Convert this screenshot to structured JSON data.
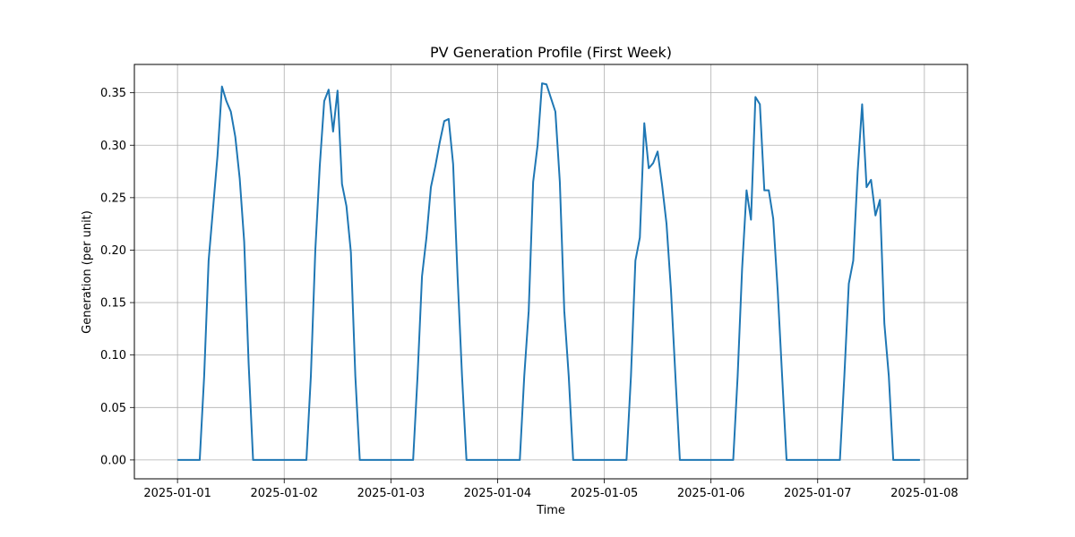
{
  "chart_data": {
    "type": "line",
    "title": "PV Generation Profile (First Week)",
    "xlabel": "Time",
    "ylabel": "Generation (per unit)",
    "x_unit": "hours since 2025-01-01 00:00",
    "xlim": [
      -9.7,
      177.7
    ],
    "ylim": [
      -0.018,
      0.377
    ],
    "grid": true,
    "x_ticks": [
      {
        "label": "2025-01-01",
        "value": 0
      },
      {
        "label": "2025-01-02",
        "value": 24
      },
      {
        "label": "2025-01-03",
        "value": 48
      },
      {
        "label": "2025-01-04",
        "value": 72
      },
      {
        "label": "2025-01-05",
        "value": 96
      },
      {
        "label": "2025-01-06",
        "value": 120
      },
      {
        "label": "2025-01-07",
        "value": 144
      },
      {
        "label": "2025-01-08",
        "value": 168
      }
    ],
    "y_ticks": [
      {
        "label": "0.00",
        "value": 0.0
      },
      {
        "label": "0.05",
        "value": 0.05
      },
      {
        "label": "0.10",
        "value": 0.1
      },
      {
        "label": "0.15",
        "value": 0.15
      },
      {
        "label": "0.20",
        "value": 0.2
      },
      {
        "label": "0.25",
        "value": 0.25
      },
      {
        "label": "0.30",
        "value": 0.3
      },
      {
        "label": "0.35",
        "value": 0.35
      }
    ],
    "colors": {
      "line": "#1f77b4",
      "grid": "#b0b0b0",
      "axes": "#000000"
    },
    "series": [
      {
        "x": [
          0,
          1,
          2,
          3,
          4,
          5,
          6,
          7,
          8,
          9,
          10,
          11,
          12,
          13,
          14,
          15,
          16,
          17,
          18,
          19,
          20,
          21,
          22,
          23,
          24,
          25,
          26,
          27,
          28,
          29,
          30,
          31,
          32,
          33,
          34,
          35,
          36,
          37,
          38,
          39,
          40,
          41,
          42,
          43,
          44,
          45,
          46,
          47,
          48,
          49,
          50,
          51,
          52,
          53,
          54,
          55,
          56,
          57,
          58,
          59,
          60,
          61,
          62,
          63,
          64,
          65,
          66,
          67,
          68,
          69,
          70,
          71,
          72,
          73,
          74,
          75,
          76,
          77,
          78,
          79,
          80,
          81,
          82,
          83,
          84,
          85,
          86,
          87,
          88,
          89,
          90,
          91,
          92,
          93,
          94,
          95,
          96,
          97,
          98,
          99,
          100,
          101,
          102,
          103,
          104,
          105,
          106,
          107,
          108,
          109,
          110,
          111,
          112,
          113,
          114,
          115,
          116,
          117,
          118,
          119,
          120,
          121,
          122,
          123,
          124,
          125,
          126,
          127,
          128,
          129,
          130,
          131,
          132,
          133,
          134,
          135,
          136,
          137,
          138,
          139,
          140,
          141,
          142,
          143,
          144,
          145,
          146,
          147,
          148,
          149,
          150,
          151,
          152,
          153,
          154,
          155,
          156,
          157,
          158,
          159,
          160,
          161,
          162,
          163,
          164,
          165,
          166,
          167
        ],
        "values": [
          0,
          0,
          0,
          0,
          0,
          0,
          0.08,
          0.19,
          0.24,
          0.29,
          0.356,
          0.342,
          0.332,
          0.308,
          0.268,
          0.208,
          0.092,
          0,
          0,
          0,
          0,
          0,
          0,
          0,
          0,
          0,
          0,
          0,
          0,
          0,
          0.08,
          0.2,
          0.28,
          0.342,
          0.353,
          0.313,
          0.352,
          0.263,
          0.242,
          0.198,
          0.08,
          0,
          0,
          0,
          0,
          0,
          0,
          0,
          0,
          0,
          0,
          0,
          0,
          0,
          0.08,
          0.175,
          0.212,
          0.26,
          0.28,
          0.303,
          0.323,
          0.325,
          0.282,
          0.175,
          0.08,
          0,
          0,
          0,
          0,
          0,
          0,
          0,
          0,
          0,
          0,
          0,
          0,
          0,
          0.08,
          0.142,
          0.265,
          0.3,
          0.359,
          0.358,
          0.345,
          0.332,
          0.265,
          0.142,
          0.08,
          0,
          0,
          0,
          0,
          0,
          0,
          0,
          0,
          0,
          0,
          0,
          0,
          0,
          0.08,
          0.19,
          0.212,
          0.321,
          0.278,
          0.283,
          0.294,
          0.262,
          0.225,
          0.162,
          0.08,
          0,
          0,
          0,
          0,
          0,
          0,
          0,
          0,
          0,
          0,
          0,
          0,
          0,
          0.08,
          0.182,
          0.257,
          0.229,
          0.346,
          0.339,
          0.257,
          0.257,
          0.23,
          0.162,
          0.08,
          0,
          0,
          0,
          0,
          0,
          0,
          0,
          0,
          0,
          0,
          0,
          0,
          0,
          0.08,
          0.168,
          0.19,
          0.275,
          0.339,
          0.26,
          0.267,
          0.233,
          0.248,
          0.13,
          0.08,
          0,
          0,
          0,
          0,
          0,
          0,
          0
        ]
      }
    ]
  }
}
